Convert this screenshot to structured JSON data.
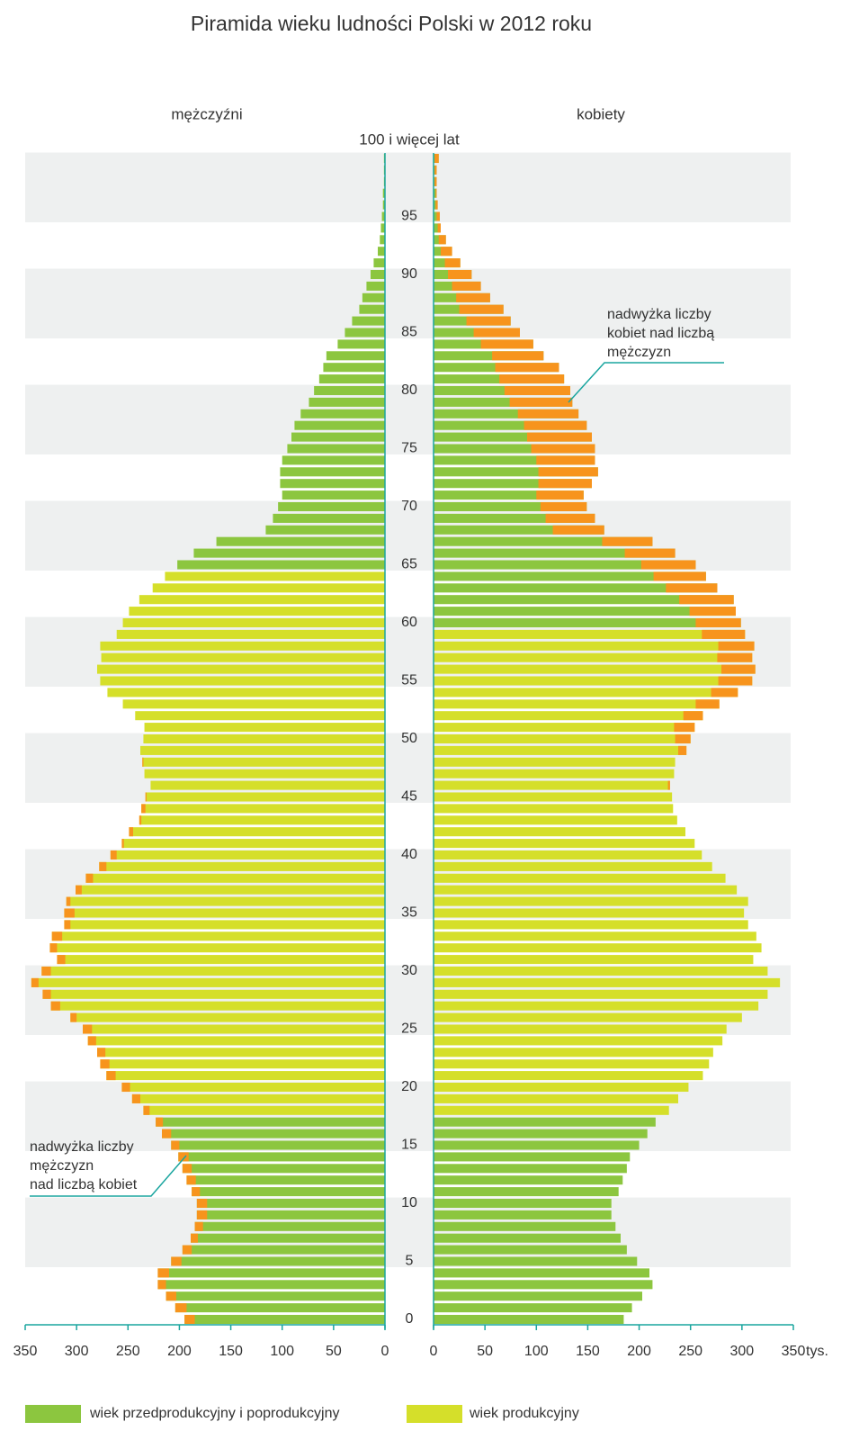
{
  "chart_data": {
    "type": "population-pyramid",
    "title": "Piramida wieku ludności Polski w 2012 roku",
    "x_unit": "tys.",
    "categories": [
      "0",
      null,
      null,
      null,
      null,
      "5",
      null,
      null,
      null,
      null,
      "10",
      null,
      null,
      null,
      null,
      "15",
      null,
      null,
      null,
      null,
      "20",
      null,
      null,
      null,
      null,
      "25",
      null,
      null,
      null,
      null,
      "30",
      null,
      null,
      null,
      null,
      "35",
      null,
      null,
      null,
      null,
      "40",
      null,
      null,
      null,
      null,
      "45",
      null,
      null,
      null,
      null,
      "50",
      null,
      null,
      null,
      null,
      "55",
      null,
      null,
      null,
      null,
      "60",
      null,
      null,
      null,
      null,
      "65",
      null,
      null,
      null,
      null,
      "70",
      null,
      null,
      null,
      null,
      "75",
      null,
      null,
      null,
      null,
      "80",
      null,
      null,
      null,
      null,
      "85",
      null,
      null,
      null,
      null,
      "90",
      null,
      null,
      null,
      null,
      "95",
      null,
      null,
      null,
      null,
      "100 i więcej lat"
    ],
    "legend": [
      {
        "label": "wiek przedprodukcyjny i poprodukcyjny",
        "color": "#8cc63f"
      },
      {
        "label": "wiek produkcyjny",
        "color": "#d5df2a"
      }
    ],
    "excess_color": "#f7941d",
    "series": [
      {
        "name": "mężczyźni",
        "side": "left",
        "values": [
          195,
          204,
          213,
          221,
          221,
          208,
          197,
          189,
          185,
          183,
          183,
          188,
          193,
          197,
          201,
          208,
          217,
          223,
          235,
          246,
          256,
          271,
          277,
          280,
          289,
          294,
          306,
          325,
          333,
          344,
          334,
          319,
          326,
          324,
          312,
          312,
          310,
          301,
          291,
          278,
          267,
          256,
          249,
          239,
          237,
          233,
          228,
          234,
          236,
          238,
          235,
          234,
          243,
          255,
          270,
          277,
          280,
          276,
          277,
          261,
          255,
          249,
          239,
          226,
          214,
          202,
          186,
          164,
          116,
          109,
          104,
          100,
          102,
          102,
          100,
          95,
          91,
          88,
          82,
          74,
          69,
          64,
          60,
          57,
          46,
          39,
          32,
          25,
          22,
          18,
          14,
          11,
          7,
          5,
          4,
          3,
          2,
          2,
          1,
          1,
          1
        ],
        "groups": [
          0,
          0,
          0,
          0,
          0,
          0,
          0,
          0,
          0,
          0,
          0,
          0,
          0,
          0,
          0,
          0,
          0,
          0,
          1,
          1,
          1,
          1,
          1,
          1,
          1,
          1,
          1,
          1,
          1,
          1,
          1,
          1,
          1,
          1,
          1,
          1,
          1,
          1,
          1,
          1,
          1,
          1,
          1,
          1,
          1,
          1,
          1,
          1,
          1,
          1,
          1,
          1,
          1,
          1,
          1,
          1,
          1,
          1,
          1,
          1,
          1,
          1,
          1,
          1,
          1,
          0,
          0,
          0,
          0,
          0,
          0,
          0,
          0,
          0,
          0,
          0,
          0,
          0,
          0,
          0,
          0,
          0,
          0,
          0,
          0,
          0,
          0,
          0,
          0,
          0,
          0,
          0,
          0,
          0,
          0,
          0,
          0,
          0,
          0,
          0,
          0
        ]
      },
      {
        "name": "kobiety",
        "side": "right",
        "values": [
          185,
          193,
          203,
          213,
          210,
          198,
          188,
          182,
          177,
          173,
          173,
          180,
          184,
          188,
          191,
          200,
          208,
          216,
          229,
          238,
          248,
          262,
          268,
          272,
          281,
          285,
          300,
          316,
          325,
          337,
          325,
          311,
          319,
          314,
          306,
          302,
          306,
          295,
          284,
          271,
          261,
          254,
          245,
          237,
          233,
          232,
          230,
          234,
          235,
          246,
          250,
          254,
          262,
          278,
          296,
          310,
          313,
          310,
          312,
          303,
          299,
          294,
          292,
          276,
          265,
          255,
          235,
          213,
          166,
          157,
          149,
          146,
          154,
          160,
          157,
          157,
          154,
          149,
          141,
          135,
          133,
          127,
          122,
          107,
          97,
          84,
          75,
          68,
          55,
          46,
          37,
          26,
          18,
          12,
          7,
          6,
          4,
          3,
          3,
          3,
          5
        ],
        "groups": [
          0,
          0,
          0,
          0,
          0,
          0,
          0,
          0,
          0,
          0,
          0,
          0,
          0,
          0,
          0,
          0,
          0,
          0,
          1,
          1,
          1,
          1,
          1,
          1,
          1,
          1,
          1,
          1,
          1,
          1,
          1,
          1,
          1,
          1,
          1,
          1,
          1,
          1,
          1,
          1,
          1,
          1,
          1,
          1,
          1,
          1,
          1,
          1,
          1,
          1,
          1,
          1,
          1,
          1,
          1,
          1,
          1,
          1,
          1,
          1,
          0,
          0,
          0,
          0,
          0,
          0,
          0,
          0,
          0,
          0,
          0,
          0,
          0,
          0,
          0,
          0,
          0,
          0,
          0,
          0,
          0,
          0,
          0,
          0,
          0,
          0,
          0,
          0,
          0,
          0,
          0,
          0,
          0,
          0,
          0,
          0,
          0,
          0,
          0,
          0,
          0
        ]
      }
    ],
    "xlim": [
      0,
      350
    ],
    "xticks": [
      0,
      50,
      100,
      150,
      200,
      250,
      300,
      350
    ],
    "annotations": [
      {
        "lines": [
          "nadwyżka liczby",
          "kobiet nad liczbą",
          "mężczyzn"
        ]
      },
      {
        "lines": [
          "nadwyżka liczby",
          "mężczyzn",
          "nad liczbą kobiet"
        ]
      }
    ]
  }
}
